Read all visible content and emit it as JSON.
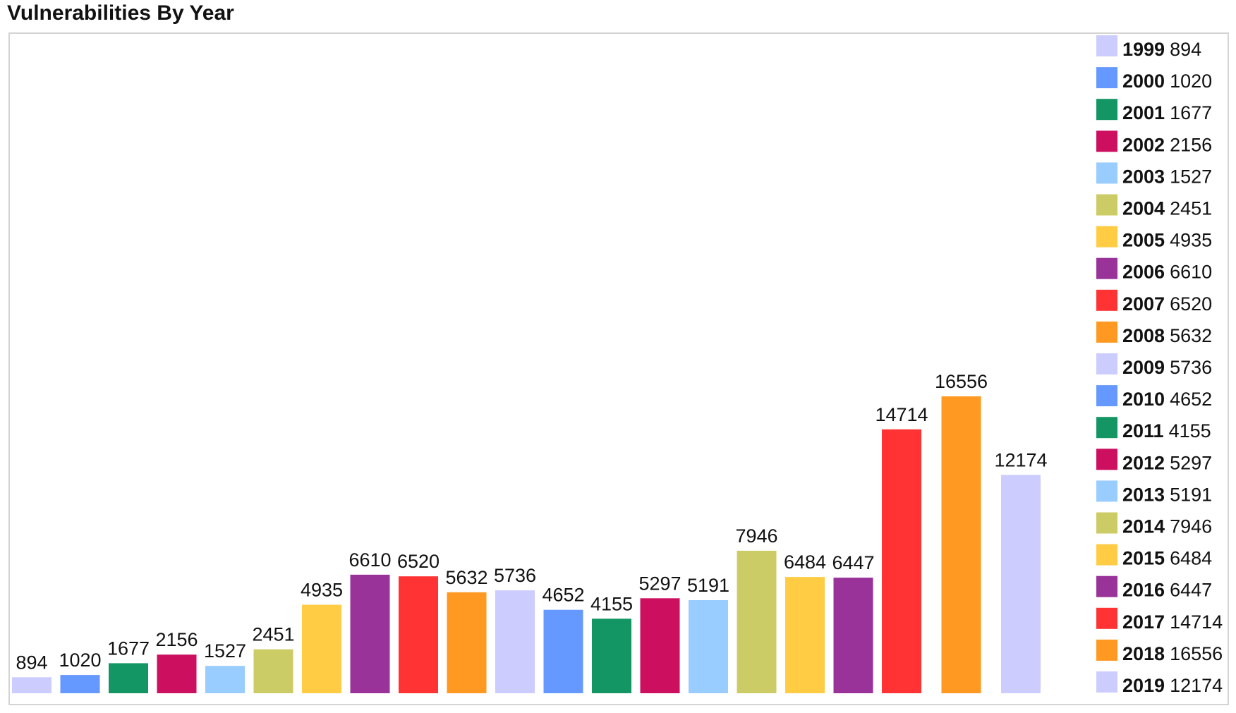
{
  "chart_data": {
    "type": "bar",
    "title": "Vulnerabilities By Year",
    "xlabel": "",
    "ylabel": "",
    "ylim": [
      0,
      16556
    ],
    "grid": false,
    "legend": "right",
    "categories": [
      "1999",
      "2000",
      "2001",
      "2002",
      "2003",
      "2004",
      "2005",
      "2006",
      "2007",
      "2008",
      "2009",
      "2010",
      "2011",
      "2012",
      "2013",
      "2014",
      "2015",
      "2016",
      "2017",
      "2018",
      "2019"
    ],
    "values": [
      894,
      1020,
      1677,
      2156,
      1527,
      2451,
      4935,
      6610,
      6520,
      5632,
      5736,
      4652,
      4155,
      5297,
      5191,
      7946,
      6484,
      6447,
      14714,
      16556,
      12174
    ],
    "colors": [
      "#ccccff",
      "#6699ff",
      "#149664",
      "#cc0f5f",
      "#99ccff",
      "#cccc66",
      "#ffcc44",
      "#993399",
      "#ff3333",
      "#ff9922",
      "#ccccff",
      "#6699ff",
      "#149664",
      "#cc0f5f",
      "#99ccff",
      "#cccc66",
      "#ffcc44",
      "#993399",
      "#ff3333",
      "#ff9922",
      "#ccccff"
    ]
  }
}
